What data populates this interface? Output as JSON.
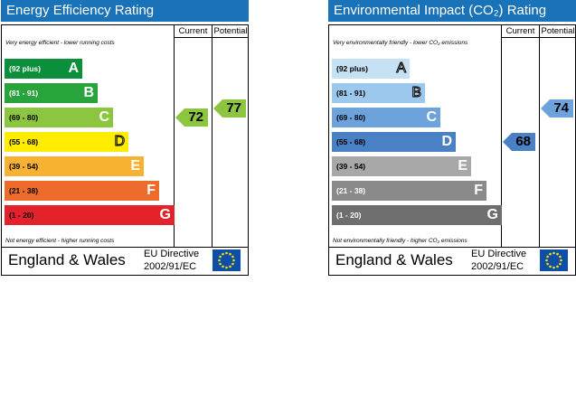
{
  "chart_data": [
    {
      "type": "bar",
      "title": "Energy Efficiency Rating",
      "column_headers": [
        "Current",
        "Potential"
      ],
      "top_note": "Very energy efficient - lower running costs",
      "bottom_note": "Not energy efficient - higher running costs",
      "bands": [
        {
          "range": "(92 plus)",
          "letter": "A",
          "color": "#0c8f3b",
          "range_color": "#ffffff"
        },
        {
          "range": "(81 - 91)",
          "letter": "B",
          "color": "#29a33c",
          "range_color": "#ffffff"
        },
        {
          "range": "(69 - 80)",
          "letter": "C",
          "color": "#8cc540",
          "range_color": "#000000"
        },
        {
          "range": "(55 - 68)",
          "letter": "D",
          "color": "#ffec00",
          "range_color": "#000000"
        },
        {
          "range": "(39 - 54)",
          "letter": "E",
          "color": "#f8b133",
          "range_color": "#000000"
        },
        {
          "range": "(21 - 38)",
          "letter": "F",
          "color": "#ee6c2b",
          "range_color": "#000000"
        },
        {
          "range": "(1 - 20)",
          "letter": "G",
          "color": "#e3222b",
          "range_color": "#000000"
        }
      ],
      "current": {
        "value": 72,
        "band": "C",
        "color": "#8cc540"
      },
      "potential": {
        "value": 77,
        "band": "C",
        "color": "#8cc540"
      },
      "footer_country": "England & Wales",
      "footer_directive": [
        "EU Directive",
        "2002/91/EC"
      ]
    },
    {
      "type": "bar",
      "title": "Environmental Impact (CO₂) Rating",
      "column_headers": [
        "Current",
        "Potential"
      ],
      "top_note": "Very environmentally friendly - lower CO₂ emissions",
      "bottom_note": "Not environmentally friendly - higher CO₂ emissions",
      "bands": [
        {
          "range": "(92 plus)",
          "letter": "A",
          "color": "#c7e1f4",
          "range_color": "#000000"
        },
        {
          "range": "(81 - 91)",
          "letter": "B",
          "color": "#9bc8ec",
          "range_color": "#000000"
        },
        {
          "range": "(69 - 80)",
          "letter": "C",
          "color": "#6da3dc",
          "range_color": "#000000"
        },
        {
          "range": "(55 - 68)",
          "letter": "D",
          "color": "#4a80c4",
          "range_color": "#000000"
        },
        {
          "range": "(39 - 54)",
          "letter": "E",
          "color": "#a8a8a8",
          "range_color": "#000000"
        },
        {
          "range": "(21 - 38)",
          "letter": "F",
          "color": "#8a8a8a",
          "range_color": "#ffffff"
        },
        {
          "range": "(1 - 20)",
          "letter": "G",
          "color": "#6e6e6e",
          "range_color": "#ffffff"
        }
      ],
      "current": {
        "value": 68,
        "band": "D",
        "color": "#4a80c4"
      },
      "potential": {
        "value": 74,
        "band": "C",
        "color": "#6da3dc"
      },
      "footer_country": "England & Wales",
      "footer_directive": [
        "EU Directive",
        "2002/91/EC"
      ]
    }
  ]
}
